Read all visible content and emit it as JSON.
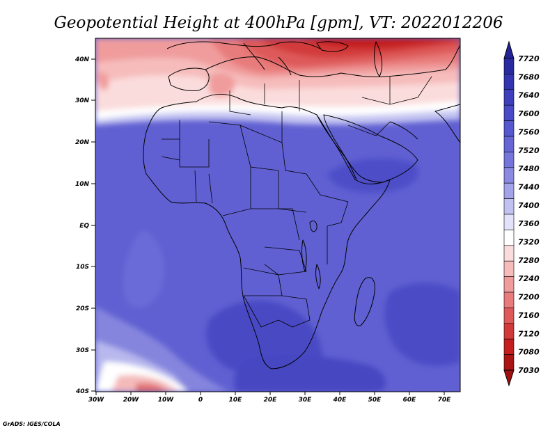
{
  "title": "Geopotential Height at 400hPa [gpm], VT: 2022012206",
  "credit": "GrADS: IGES/COLA",
  "map": {
    "variable": "Geopotential Height",
    "level": "400hPa",
    "units": "gpm",
    "valid_time": "2022012206",
    "lon_range": [
      -30,
      75
    ],
    "lat_range": [
      -40,
      45
    ],
    "lon_ticks": [
      "30W",
      "20W",
      "10W",
      "0",
      "10E",
      "20E",
      "30E",
      "40E",
      "50E",
      "60E",
      "70E"
    ],
    "lat_ticks": [
      "40N",
      "30N",
      "20N",
      "10N",
      "EQ",
      "10S",
      "20S",
      "30S",
      "40S"
    ]
  },
  "colorbar": {
    "labels": [
      "7720",
      "7680",
      "7640",
      "7600",
      "7560",
      "7520",
      "7480",
      "7440",
      "7400",
      "7360",
      "7320",
      "7280",
      "7240",
      "7200",
      "7160",
      "7120",
      "7080",
      "7030"
    ],
    "colors": [
      "#2a2aa0",
      "#3434b0",
      "#3f3fbe",
      "#4a4ac8",
      "#5757d0",
      "#6565d6",
      "#7575dc",
      "#8a8ae2",
      "#a3a3ea",
      "#c2c2f2",
      "#e2e2fa",
      "#ffffff",
      "#fbdcdc",
      "#f6bcbc",
      "#f09c9c",
      "#e87c7c",
      "#de5a5a",
      "#d23a3a",
      "#c41e1e",
      "#aa1414"
    ]
  }
}
